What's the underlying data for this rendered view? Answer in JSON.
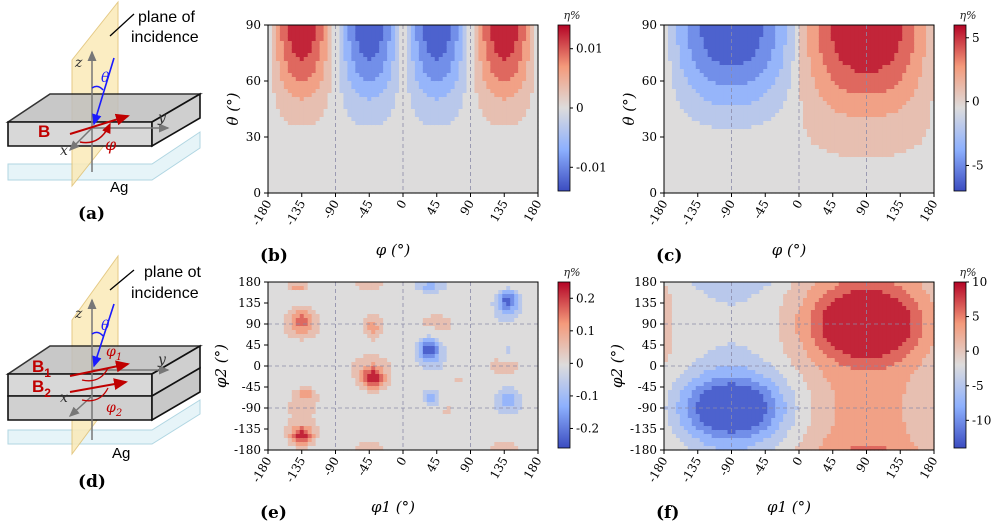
{
  "chart_data": [
    {
      "panel": "(b)",
      "type": "contour",
      "model": "b",
      "xlabel": "φ (°)",
      "ylabel": "θ (°)",
      "x_ticks": [
        "-180",
        "-135",
        "-90",
        "-45",
        "0",
        "45",
        "90",
        "135",
        "180"
      ],
      "y_ticks": [
        "0",
        "30",
        "60",
        "90"
      ],
      "xlim": [
        -180,
        180
      ],
      "ylim": [
        0,
        90
      ],
      "colorbar": {
        "label": "η%",
        "ticks": [
          "0.01",
          "0",
          "-0.01"
        ],
        "tick_values": [
          0.01,
          0,
          -0.01
        ],
        "range": [
          -0.014,
          0.014
        ]
      }
    },
    {
      "panel": "(c)",
      "type": "contour",
      "model": "c",
      "xlabel": "φ (°)",
      "ylabel": "θ (°)",
      "x_ticks": [
        "-180",
        "-135",
        "-90",
        "-45",
        "0",
        "45",
        "90",
        "135",
        "180"
      ],
      "y_ticks": [
        "0",
        "30",
        "60",
        "90"
      ],
      "xlim": [
        -180,
        180
      ],
      "ylim": [
        0,
        90
      ],
      "colorbar": {
        "label": "η%",
        "ticks": [
          "5",
          "0",
          "-5"
        ],
        "tick_values": [
          5,
          0,
          -5
        ],
        "range": [
          -7,
          6
        ]
      }
    },
    {
      "panel": "(e)",
      "type": "contour",
      "model": "e",
      "xlabel": "φ1 (°)",
      "ylabel": "φ2 (°)",
      "x_ticks": [
        "-180",
        "-135",
        "-90",
        "-45",
        "0",
        "45",
        "90",
        "135",
        "180"
      ],
      "y_ticks": [
        "-180",
        "-135",
        "-90",
        "-45",
        "0",
        "45",
        "90",
        "135",
        "180"
      ],
      "xlim": [
        -180,
        180
      ],
      "ylim": [
        -180,
        180
      ],
      "colorbar": {
        "label": "η%",
        "ticks": [
          "0.2",
          "0.1",
          "0",
          "-0.1",
          "-0.2"
        ],
        "tick_values": [
          0.2,
          0.1,
          0,
          -0.1,
          -0.2
        ],
        "range": [
          -0.26,
          0.25
        ]
      }
    },
    {
      "panel": "(f)",
      "type": "contour",
      "model": "f",
      "xlabel": "φ1 (°)",
      "ylabel": "φ2 (°)",
      "x_ticks": [
        "-180",
        "-135",
        "-90",
        "-45",
        "0",
        "45",
        "90",
        "135",
        "180"
      ],
      "y_ticks": [
        "-180",
        "-135",
        "-90",
        "-45",
        "0",
        "45",
        "90",
        "135",
        "180"
      ],
      "xlim": [
        -180,
        180
      ],
      "ylim": [
        -180,
        180
      ],
      "colorbar": {
        "label": "η%",
        "ticks": [
          "10",
          "5",
          "0",
          "-5",
          "-10"
        ],
        "tick_values": [
          10,
          5,
          0,
          -5,
          -10
        ],
        "range": [
          -14,
          10
        ]
      }
    }
  ],
  "schematic_a": {
    "label": "(a)",
    "plane_note_line1": "plane of",
    "plane_note_line2": "incidence",
    "field": "B",
    "angle_polar": "θ",
    "angle_azimuth": "φ",
    "axis_z": "z",
    "axis_y": "y",
    "axis_x": "x",
    "substrate": "Ag"
  },
  "schematic_d": {
    "label": "(d)",
    "plane_note_line1": "plane ot",
    "plane_note_line2": "incidence",
    "field1": "B",
    "field1_sub": "1",
    "field2": "B",
    "field2_sub": "2",
    "angle_polar": "θ",
    "angle1": "φ",
    "angle1_sub": "1",
    "angle2": "φ",
    "angle2_sub": "2",
    "axis_z": "z",
    "axis_y": "y",
    "axis_x": "x",
    "substrate": "Ag"
  }
}
